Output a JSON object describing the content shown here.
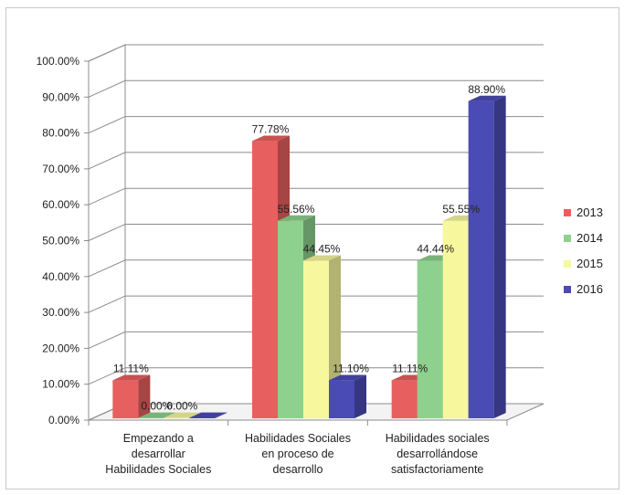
{
  "chart_data": {
    "type": "bar",
    "subtype": "3d-clustered-column",
    "title": "",
    "xlabel": "",
    "ylabel": "",
    "ylim": [
      0,
      100
    ],
    "y_ticks": [
      "0.00%",
      "10.00%",
      "20.00%",
      "30.00%",
      "40.00%",
      "50.00%",
      "60.00%",
      "70.00%",
      "80.00%",
      "90.00%",
      "100.00%"
    ],
    "categories": [
      [
        "Empezando a",
        "desarrollar",
        "Habilidades Sociales"
      ],
      [
        "Habilidades Sociales",
        "en proceso de",
        "desarrollo"
      ],
      [
        "Habilidades sociales",
        "desarrollándose",
        "satisfactoriamente"
      ]
    ],
    "series": [
      {
        "name": "2013",
        "color": "#e85f5f",
        "values": [
          11.11,
          77.78,
          11.11
        ],
        "labels": [
          "11.11%",
          "77.78%",
          "11.11%"
        ]
      },
      {
        "name": "2014",
        "color": "#8ed08e",
        "values": [
          0.0,
          55.56,
          44.44
        ],
        "labels": [
          "0.00%",
          "55.56%",
          "44.44%"
        ]
      },
      {
        "name": "2015",
        "color": "#f7f79e",
        "values": [
          0.0,
          44.45,
          55.55
        ],
        "labels": [
          "0.00%",
          "44.45%",
          "55.55%"
        ]
      },
      {
        "name": "2016",
        "color": "#4b4bb5",
        "values": [
          0.0,
          11.1,
          88.9
        ],
        "labels": [
          "",
          "11.10%",
          "88.90%"
        ]
      }
    ],
    "grid": true,
    "legend_position": "right"
  }
}
